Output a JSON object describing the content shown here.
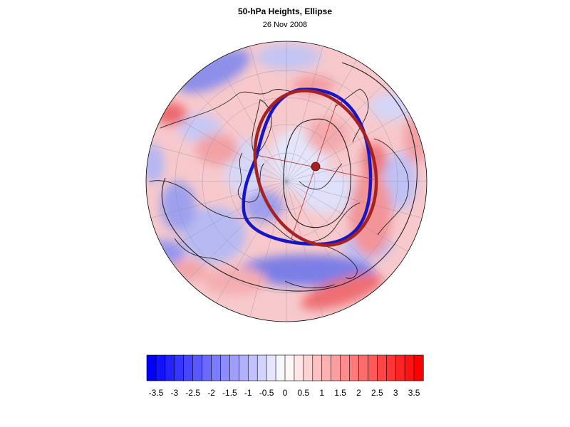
{
  "title": "50-hPa Heights, Ellipse",
  "subtitle": "26 Nov 2008",
  "colorbar": {
    "tick_labels": [
      "-3.5",
      "-3",
      "-2.5",
      "-2",
      "-1.5",
      "-1",
      "-0.5",
      "0",
      "0.5",
      "1",
      "1.5",
      "2",
      "2.5",
      "3",
      "3.5"
    ],
    "tick_values": [
      -3.5,
      -3,
      -2.5,
      -2,
      -1.5,
      -1,
      -0.5,
      0,
      0.5,
      1,
      1.5,
      2,
      2.5,
      3,
      3.5
    ],
    "range": [
      -3.75,
      3.75
    ],
    "step": 0.25,
    "negative_color": "#0000ff",
    "positive_color": "#ff0000",
    "neutral_color": "#ffffff"
  },
  "map": {
    "projection": "polar-stereographic (north pole)",
    "ellipse_colors": {
      "observed": "#1010c0",
      "fitted": "#a02020"
    },
    "center_marker_color": "#a02020",
    "contour_color": "#000000"
  }
}
